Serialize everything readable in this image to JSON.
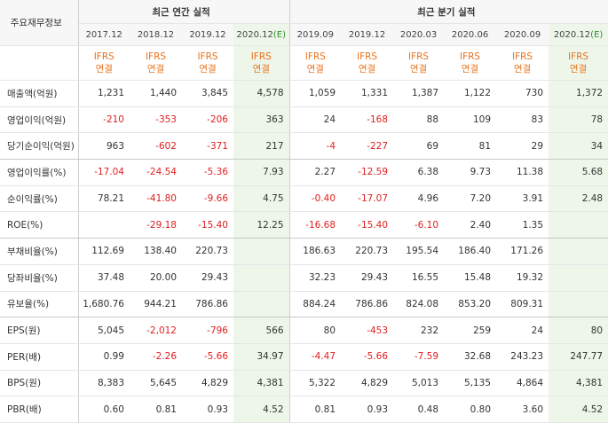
{
  "table": {
    "corner_label": "주요재무정보",
    "annual_group_label": "최근 연간 실적",
    "quarter_group_label": "최근 분기 실적",
    "annual_periods": [
      "2017.12",
      "2018.12",
      "2019.12",
      "2020.12(E)"
    ],
    "quarter_periods": [
      "2019.09",
      "2019.12",
      "2020.03",
      "2020.06",
      "2020.09",
      "2020.12(E)"
    ],
    "accounting_line1": "IFRS",
    "accounting_line2": "연결",
    "rows": [
      {
        "label": "매출액(억원)",
        "annual": [
          "1,231",
          "1,440",
          "3,845",
          "4,578"
        ],
        "quarter": [
          "1,059",
          "1,331",
          "1,387",
          "1,122",
          "730",
          "1,372"
        ]
      },
      {
        "label": "영업이익(억원)",
        "annual": [
          "-210",
          "-353",
          "-206",
          "363"
        ],
        "quarter": [
          "24",
          "-168",
          "88",
          "109",
          "83",
          "78"
        ]
      },
      {
        "label": "당기순이익(억원)",
        "annual": [
          "963",
          "-602",
          "-371",
          "217"
        ],
        "quarter": [
          "-4",
          "-227",
          "69",
          "81",
          "29",
          "34"
        ]
      },
      {
        "label": "영업이익률(%)",
        "annual": [
          "-17.04",
          "-24.54",
          "-5.36",
          "7.93"
        ],
        "quarter": [
          "2.27",
          "-12.59",
          "6.38",
          "9.73",
          "11.38",
          "5.68"
        ]
      },
      {
        "label": "순이익률(%)",
        "annual": [
          "78.21",
          "-41.80",
          "-9.66",
          "4.75"
        ],
        "quarter": [
          "-0.40",
          "-17.07",
          "4.96",
          "7.20",
          "3.91",
          "2.48"
        ]
      },
      {
        "label": "ROE(%)",
        "annual": [
          "",
          "-29.18",
          "-15.40",
          "12.25"
        ],
        "quarter": [
          "-16.68",
          "-15.40",
          "-6.10",
          "2.40",
          "1.35",
          ""
        ]
      },
      {
        "label": "부채비율(%)",
        "annual": [
          "112.69",
          "138.40",
          "220.73",
          ""
        ],
        "quarter": [
          "186.63",
          "220.73",
          "195.54",
          "186.40",
          "171.26",
          ""
        ]
      },
      {
        "label": "당좌비율(%)",
        "annual": [
          "37.48",
          "20.00",
          "29.43",
          ""
        ],
        "quarter": [
          "32.23",
          "29.43",
          "16.55",
          "15.48",
          "19.32",
          ""
        ]
      },
      {
        "label": "유보율(%)",
        "annual": [
          "1,680.76",
          "944.21",
          "786.86",
          ""
        ],
        "quarter": [
          "884.24",
          "786.86",
          "824.08",
          "853.20",
          "809.31",
          ""
        ]
      },
      {
        "label": "EPS(원)",
        "annual": [
          "5,045",
          "-2,012",
          "-796",
          "566"
        ],
        "quarter": [
          "80",
          "-453",
          "232",
          "259",
          "24",
          "80"
        ]
      },
      {
        "label": "PER(배)",
        "annual": [
          "0.99",
          "-2.26",
          "-5.66",
          "34.97"
        ],
        "quarter": [
          "-4.47",
          "-5.66",
          "-7.59",
          "32.68",
          "243.23",
          "247.77"
        ]
      },
      {
        "label": "BPS(원)",
        "annual": [
          "8,383",
          "5,645",
          "4,829",
          "4,381"
        ],
        "quarter": [
          "5,322",
          "4,829",
          "5,013",
          "5,135",
          "4,864",
          "4,381"
        ]
      },
      {
        "label": "PBR(배)",
        "annual": [
          "0.60",
          "0.81",
          "0.93",
          "4.52"
        ],
        "quarter": [
          "0.81",
          "0.93",
          "0.48",
          "0.80",
          "3.60",
          "4.52"
        ]
      }
    ]
  },
  "colors": {
    "negative": "#e02020",
    "ifrs_orange": "#e8721c",
    "estimate_bg": "#eef6e9",
    "header_bg": "#f7f7f7",
    "estimate_marker": "#2f8f2f"
  }
}
